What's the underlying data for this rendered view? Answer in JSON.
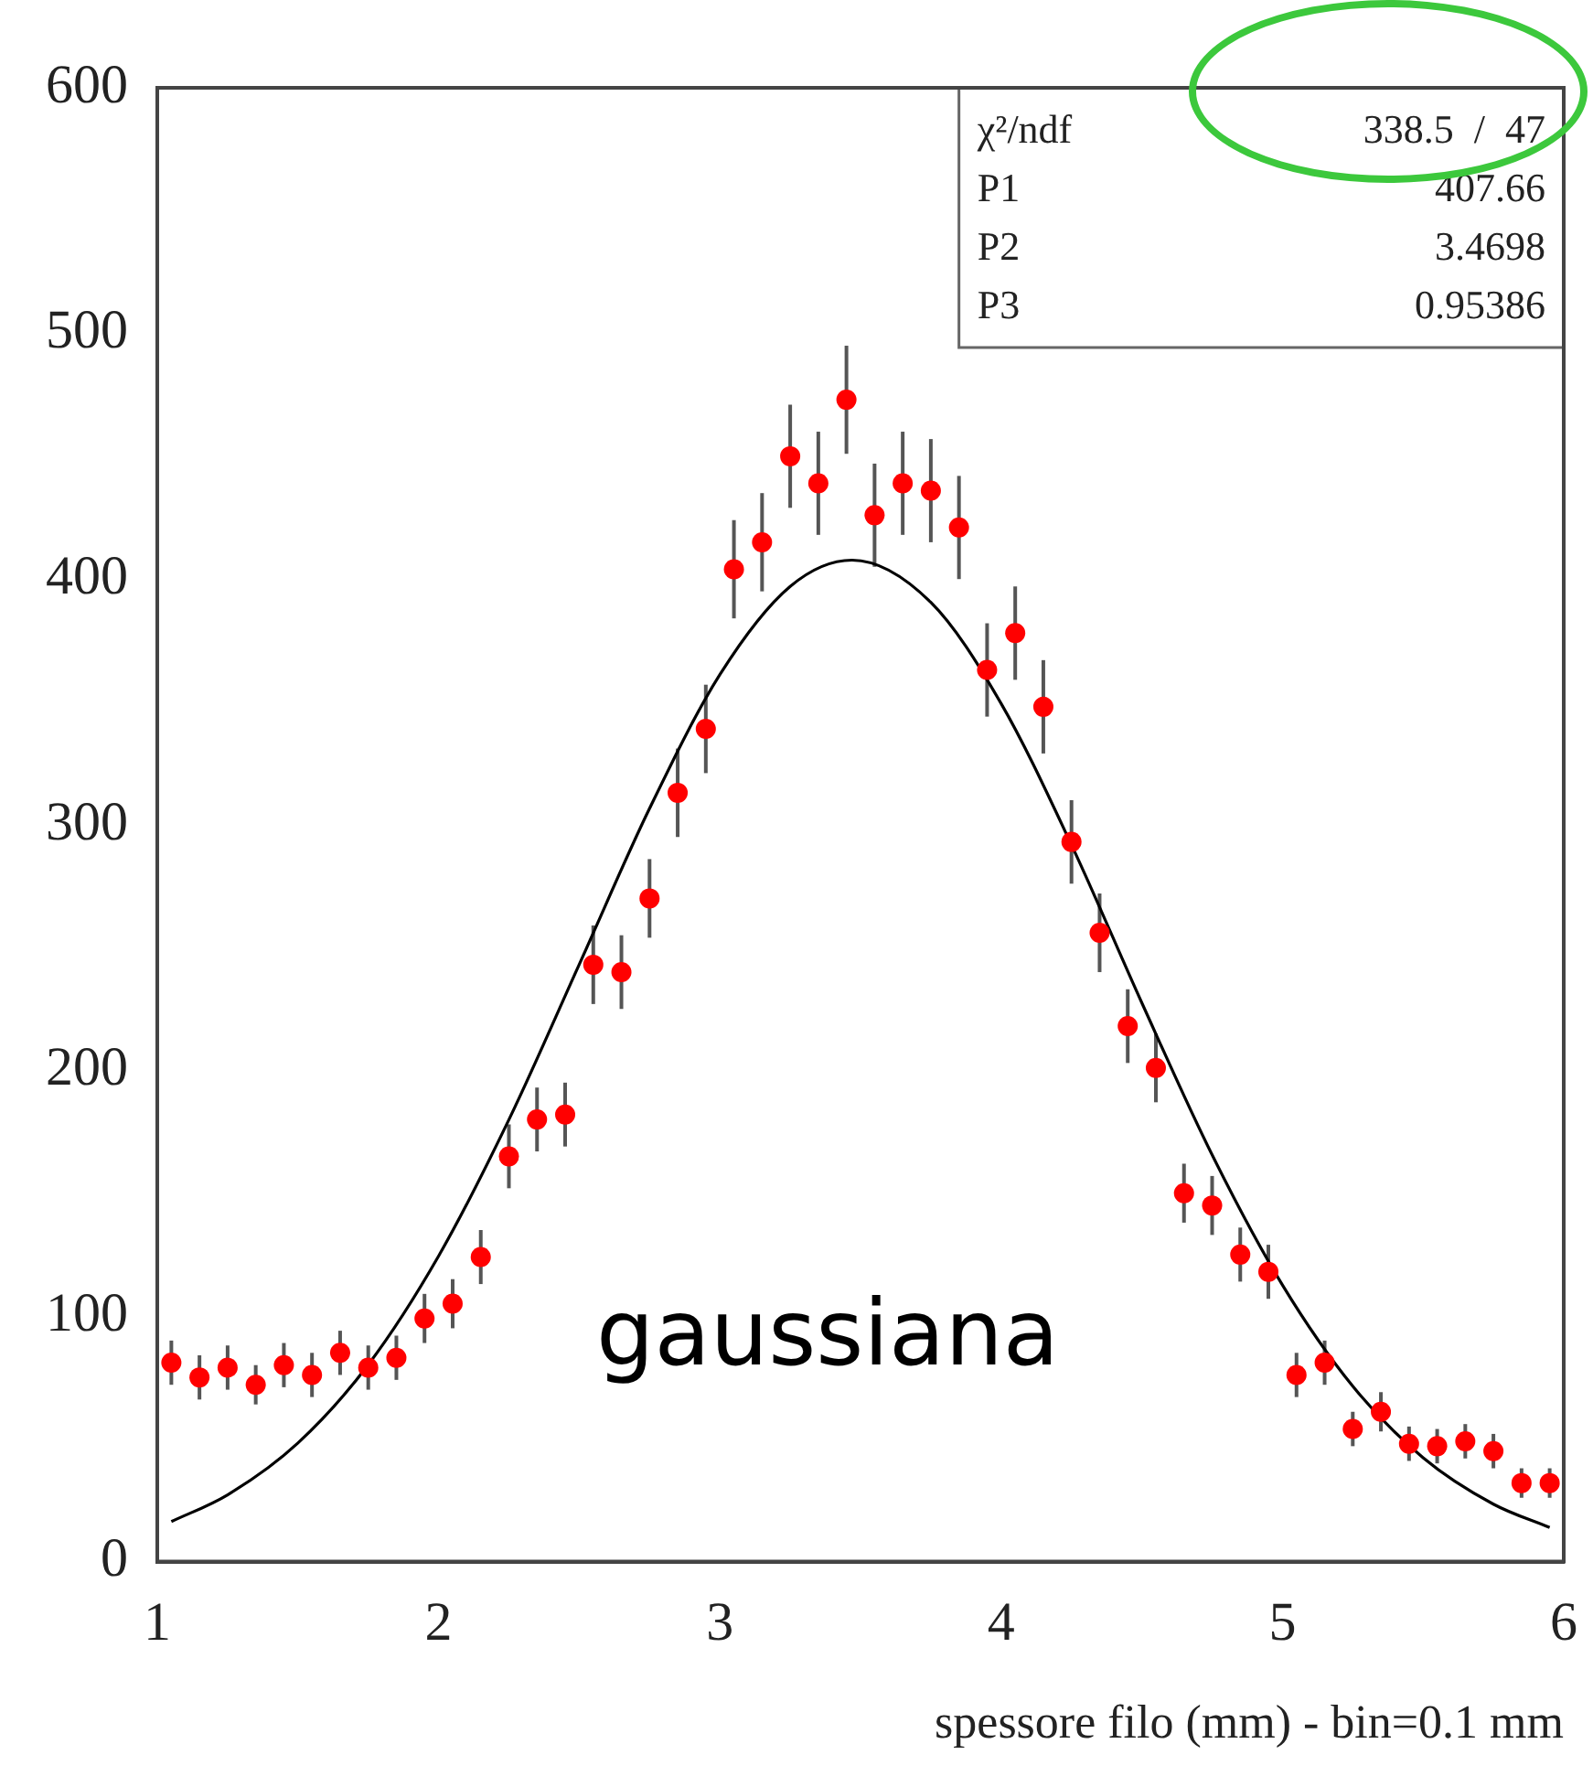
{
  "chart_data": {
    "type": "scatter",
    "xlabel": "spessore filo (mm) - bin=0.1 mm",
    "xlim": [
      1,
      6
    ],
    "xticks": [
      1,
      2,
      3,
      4,
      5,
      6
    ],
    "ylim": [
      0,
      600
    ],
    "yticks": [
      0,
      100,
      200,
      300,
      400,
      500,
      600
    ],
    "grid": false,
    "legend": false,
    "marker": "circle",
    "annotations": [
      "χ²/ndf",
      "338.5  /  47",
      "P1",
      "407.66",
      "P2",
      "3.4698",
      "P3",
      "0.95386",
      "gaussiana"
    ],
    "series": [
      {
        "color": "#ff0000",
        "x": [
          1.05,
          1.15,
          1.25,
          1.35,
          1.45,
          1.55,
          1.65,
          1.75,
          1.85,
          1.95,
          2.05,
          2.15,
          2.25,
          2.35,
          2.45,
          2.55,
          2.65,
          2.75,
          2.85,
          2.95,
          3.05,
          3.15,
          3.25,
          3.35,
          3.45,
          3.55,
          3.65,
          3.75,
          3.85,
          3.95,
          4.05,
          4.15,
          4.25,
          4.35,
          4.45,
          4.55,
          4.65,
          4.75,
          4.85,
          4.95,
          5.05,
          5.15,
          5.25,
          5.35,
          5.45,
          5.55,
          5.65,
          5.75,
          5.85,
          5.95
        ],
        "values": [
          81,
          75,
          79,
          72,
          80,
          76,
          85,
          79,
          83,
          99,
          105,
          124,
          165,
          180,
          182,
          243,
          240,
          270,
          313,
          339,
          404,
          415,
          450,
          439,
          473,
          426,
          439,
          436,
          421,
          363,
          378,
          348,
          293,
          256,
          218,
          201,
          150,
          145,
          125,
          118,
          76,
          81,
          54,
          61,
          48,
          47,
          49,
          45,
          32,
          32
        ],
        "errors": [
          9,
          9,
          9,
          8,
          9,
          9,
          9,
          9,
          9,
          10,
          10,
          11,
          13,
          13,
          13,
          16,
          15,
          16,
          18,
          18,
          20,
          20,
          21,
          21,
          22,
          21,
          21,
          21,
          21,
          19,
          19,
          19,
          17,
          16,
          15,
          14,
          12,
          12,
          11,
          11,
          9,
          9,
          7,
          8,
          7,
          7,
          7,
          7,
          6,
          6
        ]
      },
      {
        "type": "line",
        "color": "#000000",
        "marker": "none",
        "x": [
          1.05,
          1.25,
          1.5,
          1.75,
          2.0,
          2.25,
          2.5,
          2.75,
          3.0,
          3.25,
          3.47,
          3.75,
          4.0,
          4.25,
          4.5,
          4.75,
          5.0,
          5.25,
          5.5,
          5.75,
          5.95
        ],
        "values": [
          16.3,
          27.2,
          48.3,
          80.2,
          124.4,
          179.9,
          243.1,
          306.6,
          361.1,
          397.0,
          407.7,
          390.5,
          349.3,
          291.8,
          227.5,
          165.6,
          112.6,
          71.4,
          42.3,
          23.4,
          13.9
        ]
      }
    ]
  }
}
